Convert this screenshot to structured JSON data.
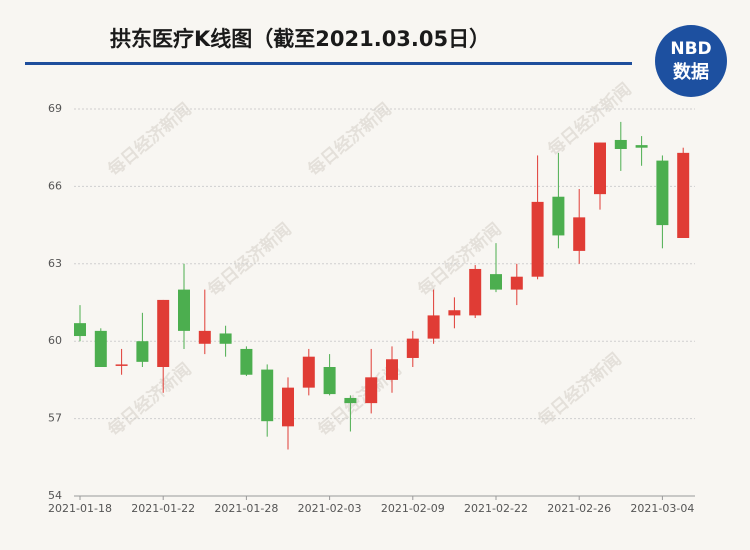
{
  "chart_data": {
    "type": "candlestick",
    "title": "拱东医疗K线图（截至2021.03.05日）",
    "logo": {
      "top": "NBD",
      "bottom": "数据"
    },
    "watermark": "每日经济新闻",
    "categories": [
      "2021-01-18",
      null,
      null,
      null,
      "2021-01-22",
      null,
      null,
      null,
      "2021-01-28",
      null,
      null,
      null,
      "2021-02-03",
      null,
      null,
      null,
      "2021-02-09",
      null,
      null,
      null,
      "2021-02-22",
      null,
      null,
      null,
      "2021-02-26",
      null,
      null,
      null,
      "2021-03-04",
      null
    ],
    "open": [
      60.7,
      60.4,
      59.05,
      60.0,
      59.0,
      62.0,
      59.9,
      60.3,
      59.7,
      58.9,
      56.7,
      58.2,
      59.0,
      57.8,
      57.6,
      58.5,
      59.35,
      60.1,
      61.0,
      61.0,
      62.6,
      62.0,
      62.5,
      65.6,
      63.5,
      65.7,
      67.8,
      67.6,
      67.0,
      64.0
    ],
    "high": [
      61.4,
      60.5,
      59.7,
      61.1,
      61.6,
      63.0,
      62.0,
      60.6,
      59.8,
      59.1,
      58.6,
      59.7,
      59.5,
      57.9,
      59.7,
      59.8,
      60.4,
      62.0,
      61.7,
      62.95,
      63.8,
      63.0,
      67.2,
      67.3,
      65.9,
      67.7,
      68.5,
      67.95,
      67.2,
      67.5
    ],
    "low": [
      60.0,
      59.0,
      58.7,
      59.0,
      58.0,
      59.7,
      59.5,
      59.4,
      58.65,
      56.3,
      55.8,
      57.9,
      57.9,
      56.5,
      57.2,
      58.0,
      59.0,
      59.9,
      60.5,
      60.9,
      61.9,
      61.4,
      62.4,
      63.6,
      63.0,
      65.1,
      66.6,
      66.8,
      63.6,
      64.0
    ],
    "close": [
      60.2,
      59.0,
      59.1,
      59.2,
      61.6,
      60.4,
      60.4,
      59.9,
      58.7,
      56.9,
      58.2,
      59.4,
      57.95,
      57.6,
      58.6,
      59.3,
      60.1,
      61.0,
      61.2,
      62.8,
      62.0,
      62.5,
      65.4,
      64.1,
      64.8,
      67.7,
      67.45,
      67.5,
      64.5,
      67.3
    ],
    "up_color": "#e03c35",
    "down_color": "#4cae4f",
    "ylim": [
      54,
      69
    ],
    "yticks": [
      54,
      57,
      60,
      63,
      66,
      69
    ],
    "grid": true
  }
}
